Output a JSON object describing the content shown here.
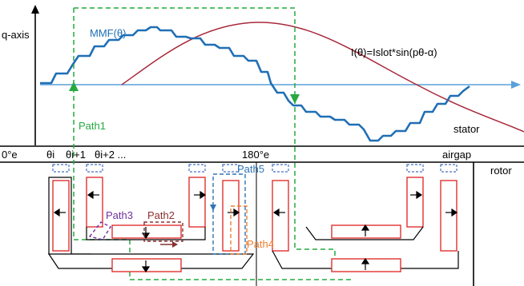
{
  "labels": {
    "q_axis": "q-axis",
    "mmf": "MMF(θ)",
    "current": "I(θ)=Islot*sin(pθ-α)",
    "stator": "stator",
    "airgap": "airgap",
    "rotor": "rotor",
    "zero": "0°e",
    "theta_i": "θi",
    "theta_i1": "θi+1",
    "theta_i2": "θi+2 ...",
    "deg180": "180°e"
  },
  "paths": {
    "path1": "Path1",
    "path2": "Path2",
    "path3": "Path3",
    "path4": "Path4",
    "path5": "Path5"
  },
  "colors": {
    "mmf": "#1f6fb5",
    "current": "#a8283a",
    "axis_line": "#5aa0d8",
    "path1": "#27a840",
    "path2": "#8a3030",
    "path3": "#7030a0",
    "path4": "#ed7d31",
    "path5": "#2e75b6",
    "magnet": "#e03030",
    "slot_top": "#4472c4"
  },
  "arrows": {
    "up": "arrow-up-icon",
    "down": "arrow-down-icon",
    "left": "arrow-left-icon",
    "right": "arrow-right-icon"
  }
}
